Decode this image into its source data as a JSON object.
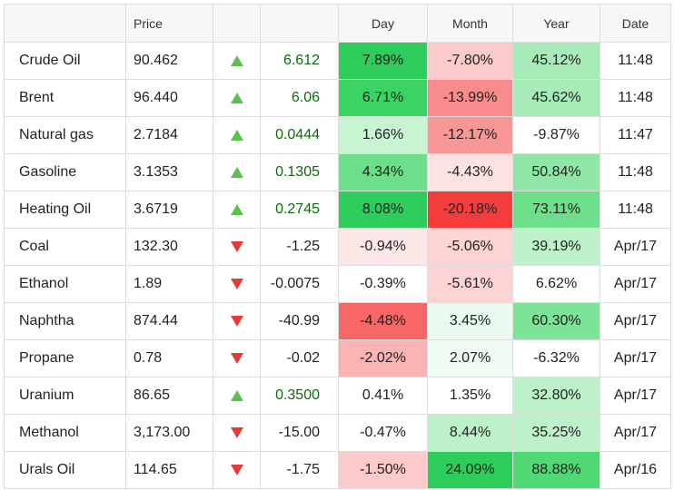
{
  "table": {
    "headers": {
      "name": "",
      "price": "Price",
      "arrow": "",
      "change": "",
      "day": "Day",
      "month": "Month",
      "year": "Year",
      "date": "Date"
    },
    "rows": [
      {
        "name": "Crude Oil",
        "price": "90.462",
        "direction": "up",
        "change": "6.612",
        "day": "7.89%",
        "month": "-7.80%",
        "year": "45.12%",
        "date": "11:48",
        "day_color": "#2ecc5a",
        "month_color": "#fbcaca",
        "year_color": "#a7ecb8"
      },
      {
        "name": "Brent",
        "price": "96.440",
        "direction": "up",
        "change": "6.06",
        "day": "6.71%",
        "month": "-13.99%",
        "year": "45.62%",
        "date": "11:48",
        "day_color": "#3bd364",
        "month_color": "#f88b8b",
        "year_color": "#a7ecb8"
      },
      {
        "name": "Natural gas",
        "price": "2.7184",
        "direction": "up",
        "change": "0.0444",
        "day": "1.66%",
        "month": "-12.17%",
        "year": "-9.87%",
        "date": "11:47",
        "day_color": "#c8f4d2",
        "month_color": "#f99797",
        "year_color": "#ffffff"
      },
      {
        "name": "Gasoline",
        "price": "3.1353",
        "direction": "up",
        "change": "0.1305",
        "day": "4.34%",
        "month": "-4.43%",
        "year": "50.84%",
        "date": "11:48",
        "day_color": "#6ddf8a",
        "month_color": "#fde2e2",
        "year_color": "#90e6a6"
      },
      {
        "name": "Heating Oil",
        "price": "3.6719",
        "direction": "up",
        "change": "0.2745",
        "day": "8.08%",
        "month": "-20.18%",
        "year": "73.11%",
        "date": "11:48",
        "day_color": "#2ecc5a",
        "month_color": "#f43c3c",
        "year_color": "#6ddf8a"
      },
      {
        "name": "Coal",
        "price": "132.30",
        "direction": "down",
        "change": "-1.25",
        "day": "-0.94%",
        "month": "-5.06%",
        "year": "39.19%",
        "date": "Apr/17",
        "day_color": "#fde7e7",
        "month_color": "#fdd3d3",
        "year_color": "#bdf1ca"
      },
      {
        "name": "Ethanol",
        "price": "1.89",
        "direction": "down",
        "change": "-0.0075",
        "day": "-0.39%",
        "month": "-5.61%",
        "year": "6.62%",
        "date": "Apr/17",
        "day_color": "#ffffff",
        "month_color": "#fdd3d3",
        "year_color": "#ffffff"
      },
      {
        "name": "Naphtha",
        "price": "874.44",
        "direction": "down",
        "change": "-40.99",
        "day": "-4.48%",
        "month": "3.45%",
        "year": "60.30%",
        "date": "Apr/17",
        "day_color": "#f76767",
        "month_color": "#e8fbee",
        "year_color": "#7de396"
      },
      {
        "name": "Propane",
        "price": "0.78",
        "direction": "down",
        "change": "-0.02",
        "day": "-2.02%",
        "month": "2.07%",
        "year": "-6.32%",
        "date": "Apr/17",
        "day_color": "#fbb3b3",
        "month_color": "#eefcf2",
        "year_color": "#ffffff"
      },
      {
        "name": "Uranium",
        "price": "86.65",
        "direction": "up",
        "change": "0.3500",
        "day": "0.41%",
        "month": "1.35%",
        "year": "32.80%",
        "date": "Apr/17",
        "day_color": "#ffffff",
        "month_color": "#ffffff",
        "year_color": "#bdf1ca"
      },
      {
        "name": "Methanol",
        "price": "3,173.00",
        "direction": "down",
        "change": "-15.00",
        "day": "-0.47%",
        "month": "8.44%",
        "year": "35.25%",
        "date": "Apr/17",
        "day_color": "#ffffff",
        "month_color": "#bdf1ca",
        "year_color": "#bdf1ca"
      },
      {
        "name": "Urals Oil",
        "price": "114.65",
        "direction": "down",
        "change": "-1.75",
        "day": "-1.50%",
        "month": "24.09%",
        "year": "88.88%",
        "date": "Apr/16",
        "day_color": "#fccaca",
        "month_color": "#2ecc5a",
        "year_color": "#4fd874"
      }
    ]
  }
}
